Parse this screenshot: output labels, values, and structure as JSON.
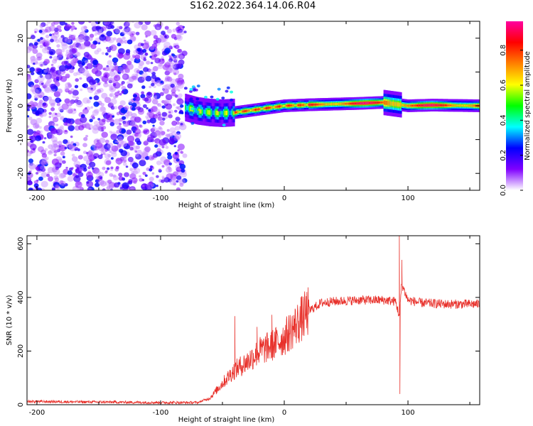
{
  "title": "S162.2022.364.14.06.R04",
  "chart_data": [
    {
      "type": "heatmap",
      "xlabel": "Height of straight line (km)",
      "ylabel": "Frequency (Hz)",
      "xlim": [
        -208,
        158
      ],
      "ylim": [
        -25,
        25
      ],
      "xticks": [
        -200,
        -100,
        0,
        100
      ],
      "yticks": [
        -20,
        -10,
        0,
        10,
        20
      ],
      "noise_region_x": [
        -208,
        -80
      ],
      "signal_band": {
        "x": [
          -80,
          -70,
          -60,
          -50,
          -40,
          -30,
          -20,
          -10,
          0,
          20,
          40,
          60,
          80,
          90,
          100,
          120,
          158
        ],
        "frequency": [
          -0.5,
          -1.5,
          -2,
          -2.2,
          -2,
          -1.5,
          -1,
          -0.5,
          0,
          0.3,
          0.5,
          0.7,
          1,
          0.5,
          0,
          0.2,
          0
        ]
      },
      "colorbar": {
        "label": "Normalized spectral amplitude",
        "range": [
          0,
          1
        ],
        "ticks": [
          "0.0",
          "0.2",
          "0.4",
          "0.6",
          "0.8"
        ],
        "colors": [
          "#ffffff",
          "#8000ff",
          "#0000ff",
          "#00ffff",
          "#00ff00",
          "#ffff00",
          "#ff8000",
          "#ff0000",
          "#ff00a0"
        ]
      }
    },
    {
      "type": "line",
      "xlabel": "Height of straight line (km)",
      "ylabel": "SNR (10 * v/v)",
      "xlim": [
        -208,
        158
      ],
      "ylim": [
        0,
        630
      ],
      "xticks": [
        -200,
        -100,
        0,
        100
      ],
      "yticks": [
        0,
        200,
        400,
        600
      ],
      "color": "#e8302a",
      "envelope": {
        "x": [
          -208,
          -150,
          -100,
          -70,
          -60,
          -50,
          -40,
          -30,
          -20,
          -10,
          0,
          10,
          20,
          30,
          40,
          60,
          80,
          90,
          93,
          95,
          100,
          110,
          130,
          158
        ],
        "y": [
          12,
          10,
          8,
          8,
          25,
          80,
          130,
          160,
          200,
          220,
          250,
          300,
          350,
          380,
          385,
          390,
          390,
          385,
          330,
          450,
          390,
          380,
          375,
          375
        ]
      },
      "spikes": [
        {
          "x": -40,
          "y": 330
        },
        {
          "x": -22,
          "y": 290
        },
        {
          "x": -10,
          "y": 335
        },
        {
          "x": 93,
          "y": 630
        },
        {
          "x": 93.5,
          "y": 40
        },
        {
          "x": 95,
          "y": 540
        }
      ]
    }
  ]
}
